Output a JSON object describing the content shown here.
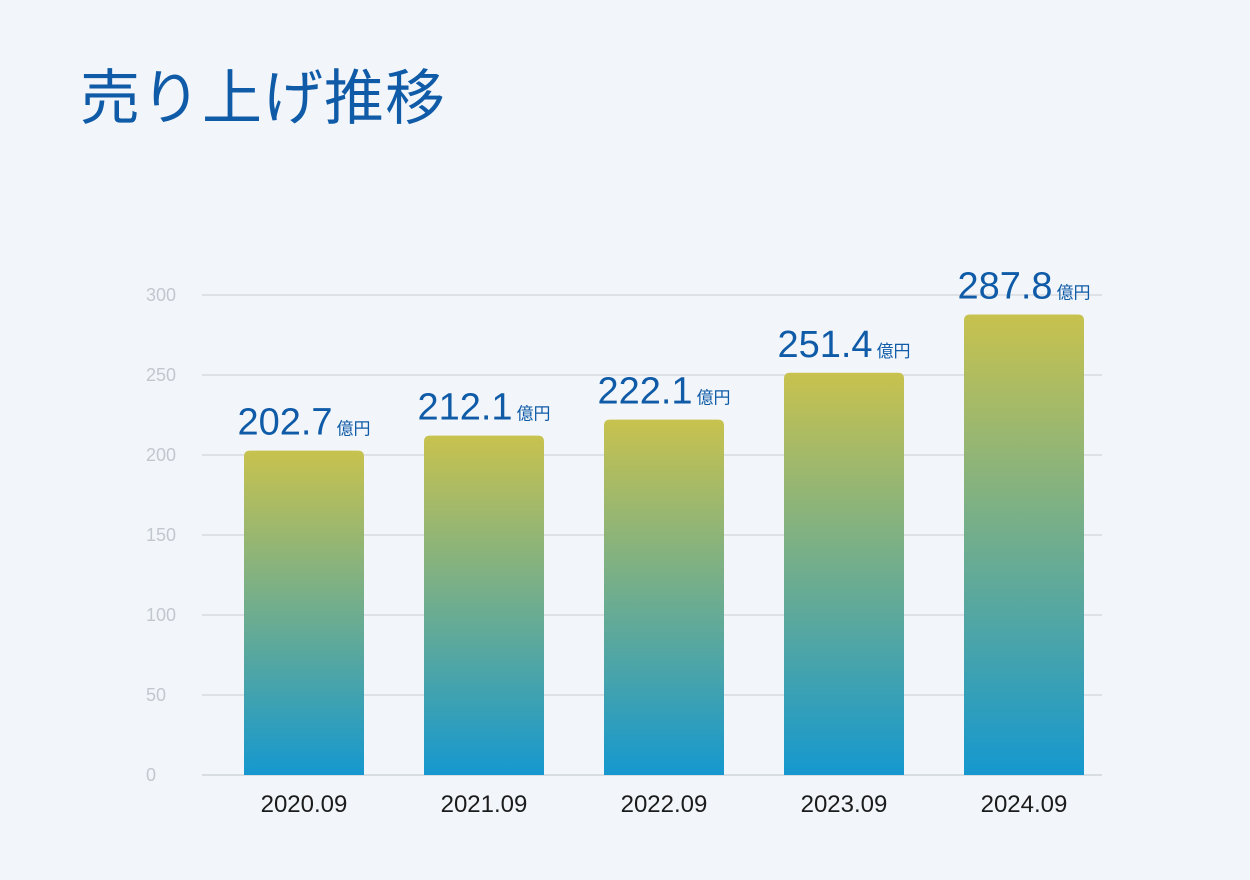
{
  "header": {
    "title": "売り上げ推移"
  },
  "chart_data": {
    "type": "bar",
    "categories": [
      "2020.09",
      "2021.09",
      "2022.09",
      "2023.09",
      "2024.09"
    ],
    "values": [
      202.7,
      212.1,
      222.1,
      251.4,
      287.8
    ],
    "value_labels": [
      "202.7",
      "212.1",
      "222.1",
      "251.4",
      "287.8"
    ],
    "value_unit": "億円",
    "yticks": [
      0,
      50,
      100,
      150,
      200,
      250,
      300
    ],
    "ylim": [
      0,
      300
    ],
    "grid": true,
    "legend": "none",
    "colors": {
      "bar_top": "#c8c24e",
      "bar_bottom": "#1598cf",
      "label": "#0f5ba8",
      "grid": "#c9ced4",
      "tick": "#c2c7cf",
      "axis_label": "#1c1c1c"
    }
  }
}
